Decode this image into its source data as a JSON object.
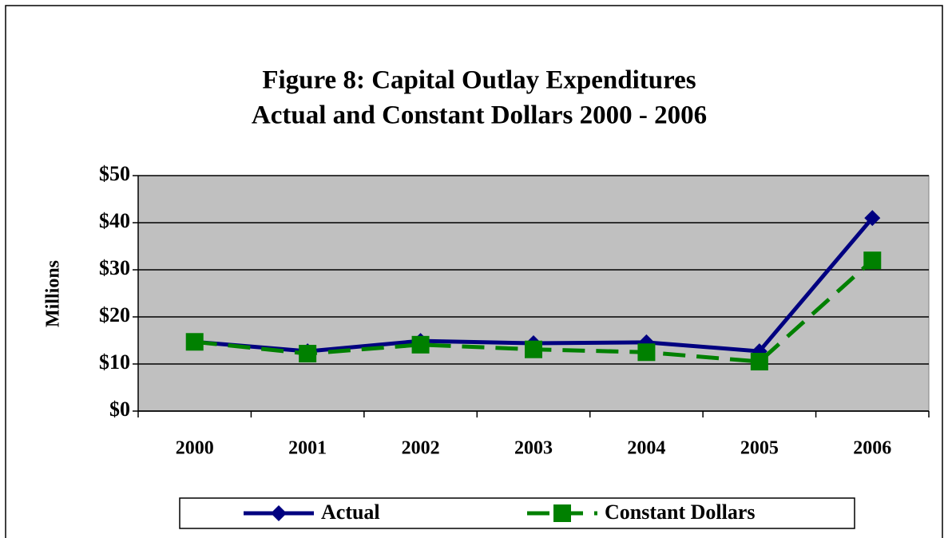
{
  "chart_data": {
    "type": "line",
    "title": "Figure 8:  Capital Outlay Expenditures",
    "subtitle": "Actual and Constant Dollars 2000 - 2006",
    "y_label": "Millions",
    "categories": [
      "2000",
      "2001",
      "2002",
      "2003",
      "2004",
      "2005",
      "2006"
    ],
    "series": [
      {
        "name": "Actual",
        "color": "#000080",
        "marker": "diamond",
        "dash": false,
        "values": [
          14.7,
          12.7,
          14.9,
          14.4,
          14.6,
          12.7,
          41.0
        ]
      },
      {
        "name": "Constant Dollars",
        "color": "#008000",
        "marker": "square",
        "dash": true,
        "values": [
          14.7,
          12.2,
          14.1,
          13.1,
          12.5,
          10.5,
          32.0
        ]
      }
    ],
    "ylim": [
      0,
      50
    ],
    "yticks": [
      {
        "value": 0,
        "label": "$0"
      },
      {
        "value": 10,
        "label": "$10"
      },
      {
        "value": 20,
        "label": "$20"
      },
      {
        "value": 30,
        "label": "$30"
      },
      {
        "value": 40,
        "label": "$40"
      },
      {
        "value": 50,
        "label": "$50"
      }
    ],
    "grid": true,
    "plot_background": "#c0c0c0",
    "legend": "bottom"
  }
}
